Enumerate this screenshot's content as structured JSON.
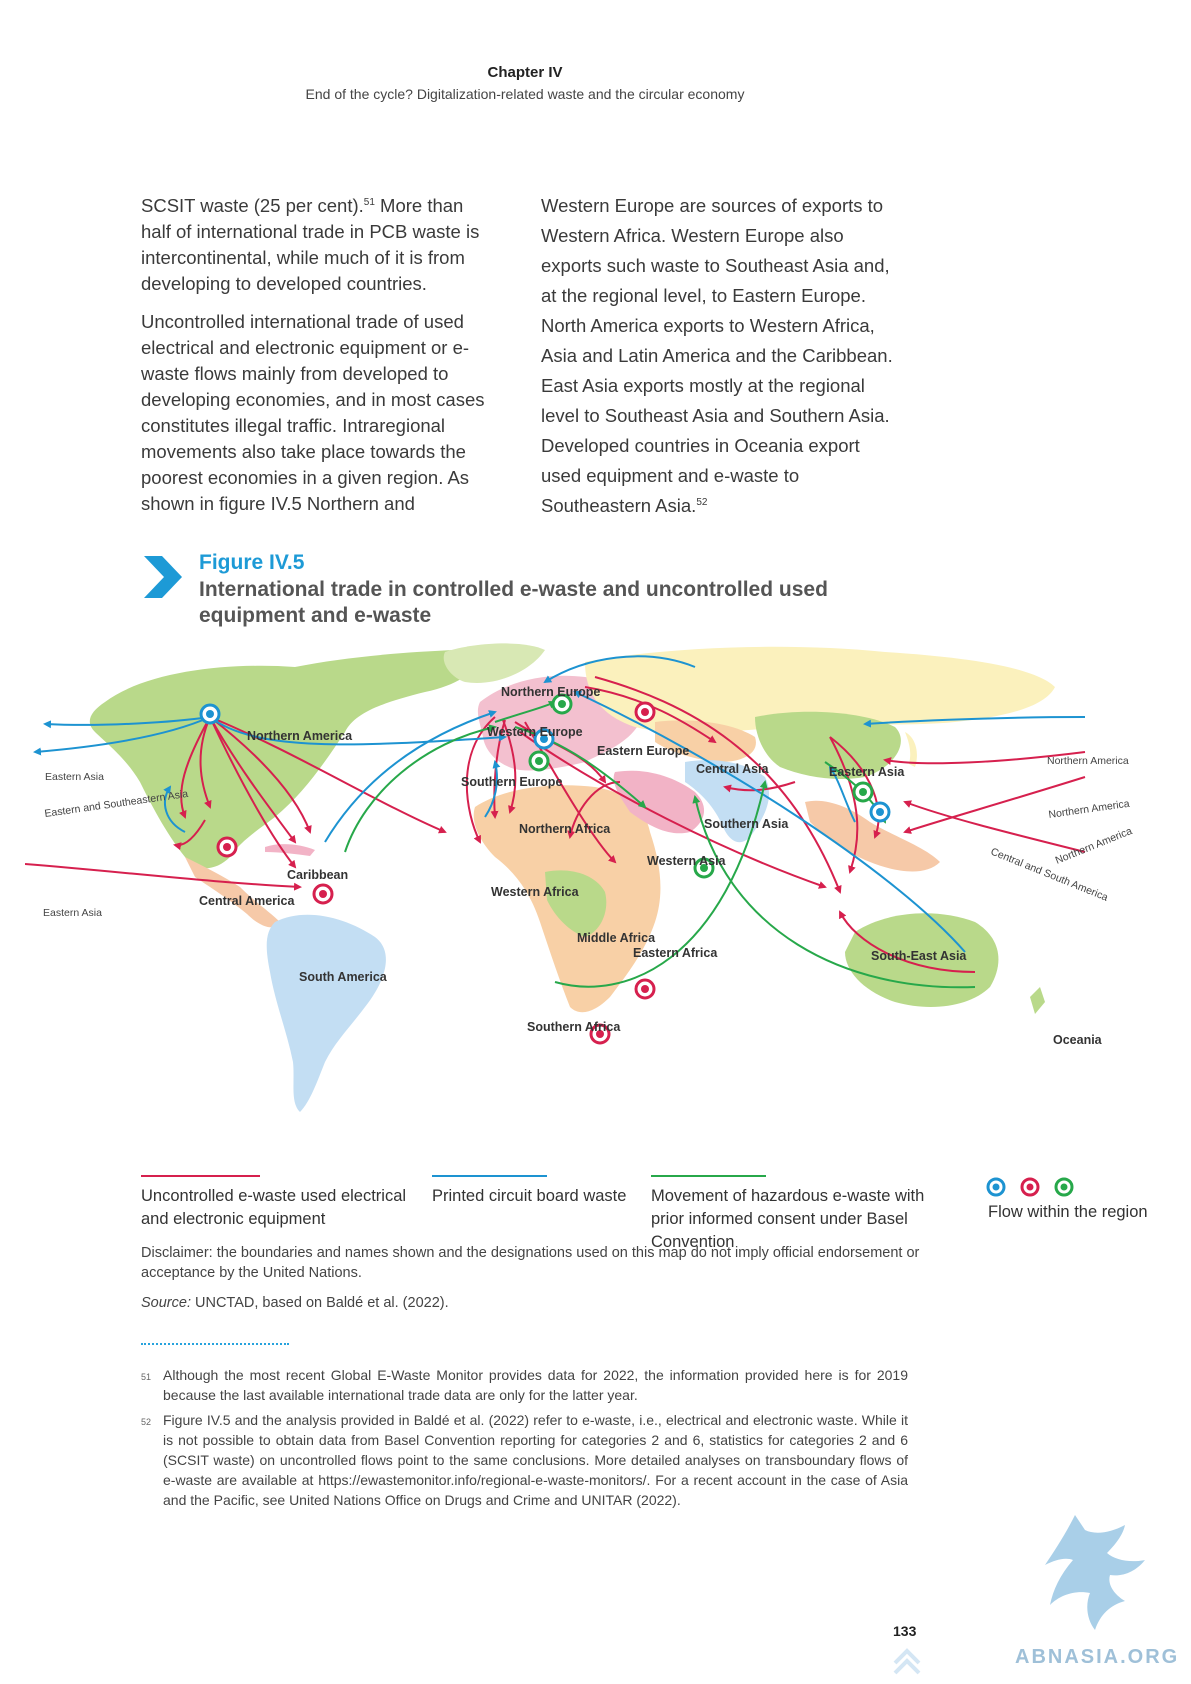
{
  "header": {
    "chapter": "Chapter IV",
    "subtitle": "End of the cycle? Digitalization-related waste and the circular economy"
  },
  "body": {
    "col1_p1": [
      "SCSIT waste (25 per cent).",
      "51",
      " More than half of international trade in PCB waste is intercontinental, while much of it is from developing to developed countries."
    ],
    "col1_p2": "Uncontrolled international trade of used electrical and electronic equipment or e-waste flows mainly from developed to developing economies, and in most cases constitutes illegal traffic. Intraregional movements also take place towards the poorest economies in a given region. As shown in figure IV.5 Northern and",
    "col2_p1": [
      "Western Europe are sources of exports to Western Africa. Western Europe also exports such waste to Southeast Asia and, at the regional level, to Eastern Europe. North America exports to Western Africa, Asia and Latin America and the Caribbean. East Asia exports mostly at the regional level to Southeast Asia and Southern Asia. Developed countries in Oceania export used equipment and e-waste to Southeastern Asia.",
      "52"
    ]
  },
  "figure": {
    "number": "Figure IV.5",
    "title": "International trade in controlled e-waste and uncontrolled used equipment and e-waste"
  },
  "map": {
    "regions": {
      "northern_america": "Northern America",
      "eastern_asia_left": "Eastern Asia",
      "eastern_se_asia_left": "Eastern and Southeastern Asia",
      "eastern_asia_left2": "Eastern Asia",
      "caribbean": "Caribbean",
      "central_america": "Central America",
      "south_america": "South America",
      "northern_europe": "Northern Europe",
      "western_europe": "Western Europe",
      "southern_europe": "Southern Europe",
      "eastern_europe": "Eastern Europe",
      "northern_africa": "Northern Africa",
      "western_africa": "Western Africa",
      "middle_africa": "Middle Africa",
      "eastern_africa": "Eastern Africa",
      "southern_africa": "Southern Africa",
      "western_asia": "Western Asia",
      "central_asia": "Central Asia",
      "southern_asia": "Southern Asia",
      "eastern_asia": "Eastern Asia",
      "south_east_asia": "South-East Asia",
      "oceania": "Oceania",
      "northern_america_right1": "Northern America",
      "northern_america_right2": "Northern America",
      "northern_america_right3": "Northern America",
      "central_south_america_right": "Central and South America"
    },
    "colors": {
      "uncontrolled": "#d6204e",
      "pcb": "#1d93d1",
      "hazardous": "#27a84a"
    }
  },
  "legend": {
    "uncontrolled": "Uncontrolled e-waste used electrical and electronic equipment",
    "pcb": "Printed circuit board waste",
    "hazardous": "Movement of hazardous e-waste with prior informed consent under Basel Convention",
    "within": "Flow within the region"
  },
  "disclaimer": "Disclaimer: the boundaries and names shown and the designations used on this map do not imply official endorsement or acceptance by the United Nations.",
  "source": {
    "label": "Source:",
    "text": " UNCTAD, based on Baldé et al. (2022)."
  },
  "footnotes": [
    {
      "num": "51",
      "text": "Although the most recent Global E-Waste Monitor provides data for 2022, the information provided here is for 2019 because the last available international trade data are only for the latter year."
    },
    {
      "num": "52",
      "text": "Figure IV.5 and the analysis provided in Baldé et al. (2022) refer to e-waste, i.e., electrical and electronic waste. While it is not possible to obtain data from Basel Convention reporting for categories 2 and 6, statistics for categories 2 and 6 (SCSIT waste) on uncontrolled flows point to the same conclusions. More detailed analyses on transboundary flows of e-waste are available at https://ewastemonitor.info/regional-e-waste-monitors/. For a recent account in the case of Asia and the Pacific, see United Nations Office on Drugs and Crime and UNITAR (2022)."
    }
  ],
  "page_number": "133",
  "watermark": "ABNASIA.ORG"
}
